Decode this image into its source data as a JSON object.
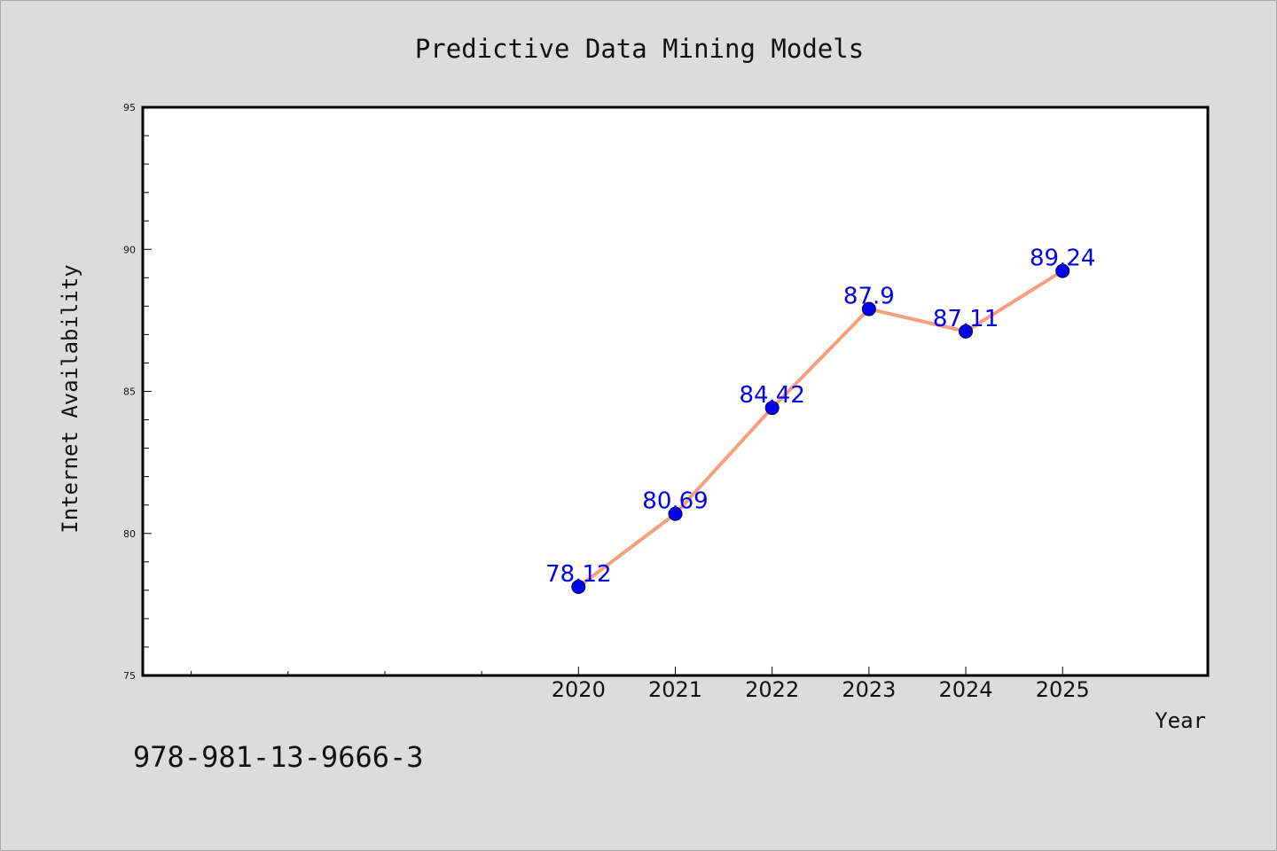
{
  "chart_data": {
    "type": "line",
    "title": "Predictive Data Mining Models",
    "xlabel": "Year",
    "ylabel": "Internet Availability",
    "x": [
      "2020",
      "2021",
      "2022",
      "2023",
      "2024",
      "2025"
    ],
    "series": [
      {
        "values": [
          78.12,
          80.69,
          84.42,
          87.9,
          87.11,
          89.24
        ],
        "data_labels": [
          "78.12",
          "80.69",
          "84.42",
          "87.9",
          "87.11",
          "89.24"
        ]
      }
    ],
    "ylim": [
      75,
      95
    ],
    "yticks": [
      75,
      80,
      85,
      90,
      95
    ],
    "ytick_labels": [
      "75",
      "80",
      "85",
      "90",
      "95"
    ],
    "x_extent_years": [
      2015.5,
      2026.5
    ],
    "x_minor_ticks": [
      2016,
      2017,
      2018,
      2019
    ],
    "y_minor_step": 1,
    "grid": false,
    "legend": "none",
    "colors": {
      "line": "#f4a07f",
      "marker": "#0000ee",
      "label": "#0000ee",
      "plot_background": "#ffffff",
      "figure_background": "#dcdcdc",
      "axes": "#000000"
    }
  },
  "footer": {
    "isbn": "978-981-13-9666-3"
  }
}
